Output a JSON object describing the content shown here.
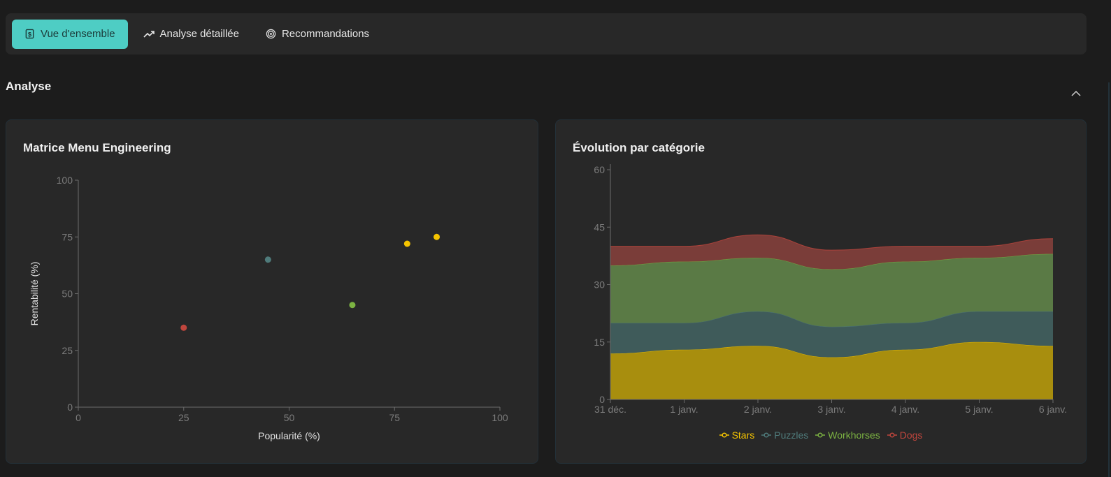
{
  "tabs": [
    {
      "label": "Vue d'ensemble",
      "icon": "dollar-icon",
      "active": true
    },
    {
      "label": "Analyse détaillée",
      "icon": "trending-up-icon",
      "active": false
    },
    {
      "label": "Recommandations",
      "icon": "target-icon",
      "active": false
    }
  ],
  "section": {
    "title": "Analyse",
    "collapse_icon": "chevron-up-icon"
  },
  "colors": {
    "accent": "#4ecdc4",
    "stars": "#f5c400",
    "puzzles": "#4f7b7b",
    "workhorses": "#7cb342",
    "dogs": "#c0463d"
  },
  "scatter": {
    "title": "Matrice Menu Engineering",
    "chart_data": {
      "type": "scatter",
      "xlabel": "Popularité (%)",
      "ylabel": "Rentabilité (%)",
      "xlim": [
        0,
        100
      ],
      "ylim": [
        0,
        100
      ],
      "xticks": [
        "0",
        "25",
        "50",
        "75",
        "100"
      ],
      "yticks": [
        "0",
        "25",
        "50",
        "75",
        "100"
      ],
      "points": [
        {
          "x": 25,
          "y": 35,
          "category": "Dogs"
        },
        {
          "x": 45,
          "y": 65,
          "category": "Puzzles"
        },
        {
          "x": 65,
          "y": 45,
          "category": "Workhorses"
        },
        {
          "x": 78,
          "y": 72,
          "category": "Stars"
        },
        {
          "x": 85,
          "y": 75,
          "category": "Stars"
        }
      ]
    }
  },
  "area": {
    "title": "Évolution par catégorie",
    "chart_data": {
      "type": "area",
      "stacked": true,
      "categories": [
        "31 déc.",
        "1 janv.",
        "2 janv.",
        "3 janv.",
        "4 janv.",
        "5 janv.",
        "6 janv."
      ],
      "yticks": [
        "0",
        "15",
        "30",
        "45",
        "60"
      ],
      "ylim": [
        0,
        60
      ],
      "series": [
        {
          "name": "Stars",
          "values": [
            12,
            13,
            14,
            11,
            13,
            15,
            14
          ]
        },
        {
          "name": "Puzzles",
          "values": [
            8,
            7,
            9,
            8,
            7,
            8,
            9
          ]
        },
        {
          "name": "Workhorses",
          "values": [
            15,
            16,
            14,
            15,
            16,
            14,
            15
          ]
        },
        {
          "name": "Dogs",
          "values": [
            5,
            4,
            6,
            5,
            4,
            3,
            4
          ]
        }
      ]
    }
  }
}
